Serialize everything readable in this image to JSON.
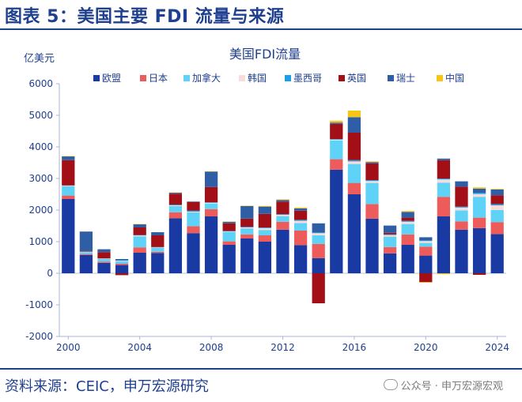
{
  "header": {
    "title": "图表 5：美国主要 FDI 流量与来源"
  },
  "footer": {
    "source": "资料来源：CEIC，申万宏源研究",
    "watermark": "公众号 · 申万宏源宏观"
  },
  "chart_data": {
    "type": "bar",
    "stacked": true,
    "title": "美国FDI流量",
    "ylabel": "亿美元",
    "ylim": [
      -2000,
      6000
    ],
    "yticks": [
      6000,
      5000,
      4000,
      3000,
      2000,
      1000,
      0,
      -1000,
      -2000
    ],
    "x_tick_labels": [
      "2000",
      "2004",
      "2008",
      "2012",
      "2016",
      "2020",
      "2024"
    ],
    "x_tick_years": [
      2000,
      2004,
      2008,
      2012,
      2016,
      2020,
      2024
    ],
    "grid": false,
    "legend_position": "top",
    "x": [
      2000,
      2001,
      2002,
      2003,
      2004,
      2005,
      2006,
      2007,
      2008,
      2009,
      2010,
      2011,
      2012,
      2013,
      2014,
      2015,
      2016,
      2017,
      2018,
      2019,
      2020,
      2021,
      2022,
      2023,
      2024
    ],
    "series": [
      {
        "name": "欧盟",
        "color": "#1a3aa3",
        "values": [
          2350,
          580,
          330,
          260,
          650,
          640,
          1740,
          1270,
          1800,
          900,
          1100,
          1000,
          1380,
          890,
          480,
          3280,
          2500,
          1730,
          630,
          900,
          560,
          1800,
          1380,
          1430,
          1240
        ]
      },
      {
        "name": "日本",
        "color": "#ee5b5b",
        "values": [
          110,
          30,
          40,
          40,
          170,
          40,
          190,
          220,
          230,
          110,
          130,
          200,
          250,
          460,
          450,
          330,
          360,
          460,
          200,
          330,
          280,
          620,
          260,
          330,
          380
        ]
      },
      {
        "name": "加拿大",
        "color": "#5fd3f7",
        "values": [
          300,
          60,
          90,
          80,
          350,
          120,
          200,
          440,
          170,
          290,
          190,
          170,
          180,
          240,
          270,
          590,
          600,
          670,
          330,
          330,
          120,
          450,
          350,
          660,
          380
        ]
      },
      {
        "name": "韩国",
        "color": "#f8dcdc",
        "values": [
          20,
          10,
          10,
          20,
          30,
          20,
          20,
          20,
          30,
          20,
          30,
          60,
          40,
          70,
          70,
          30,
          80,
          60,
          50,
          70,
          60,
          100,
          90,
          90,
          150
        ]
      },
      {
        "name": "墨西哥",
        "color": "#1aa0e6",
        "values": [
          0,
          10,
          0,
          10,
          10,
          10,
          20,
          30,
          20,
          20,
          20,
          20,
          20,
          30,
          20,
          20,
          40,
          30,
          20,
          30,
          20,
          30,
          30,
          40,
          40
        ]
      },
      {
        "name": "英国",
        "color": "#a30f17",
        "values": [
          800,
          20,
          200,
          -60,
          240,
          370,
          350,
          280,
          480,
          240,
          260,
          430,
          400,
          290,
          -950,
          480,
          870,
          530,
          50,
          100,
          -280,
          580,
          630,
          -50,
          280
        ]
      },
      {
        "name": "瑞士",
        "color": "#2e5fa6",
        "values": [
          120,
          610,
          90,
          40,
          100,
          100,
          30,
          10,
          490,
          50,
          400,
          230,
          50,
          70,
          290,
          40,
          490,
          40,
          230,
          180,
          100,
          50,
          170,
          130,
          180
        ]
      },
      {
        "name": "中国",
        "color": "#f5c518",
        "values": [
          10,
          0,
          0,
          0,
          10,
          0,
          10,
          0,
          10,
          10,
          10,
          20,
          20,
          30,
          0,
          60,
          210,
          20,
          0,
          30,
          -20,
          -30,
          0,
          40,
          20
        ]
      }
    ]
  }
}
